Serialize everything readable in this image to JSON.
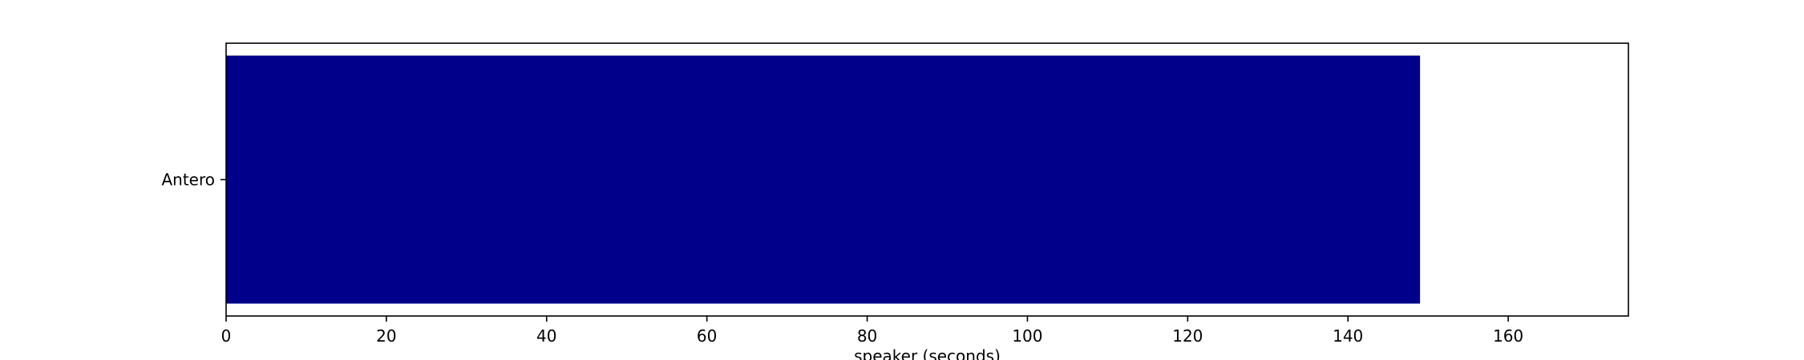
{
  "chart_data": {
    "type": "bar",
    "orientation": "horizontal",
    "categories": [
      "Antero"
    ],
    "values": [
      149
    ],
    "xlabel": "speaker (seconds)",
    "ylabel": "",
    "xlim": [
      0,
      175
    ],
    "xticks": [
      0,
      20,
      40,
      60,
      80,
      100,
      120,
      140,
      160
    ],
    "grid": false,
    "legend": "none",
    "bar_color": "#00008b"
  }
}
